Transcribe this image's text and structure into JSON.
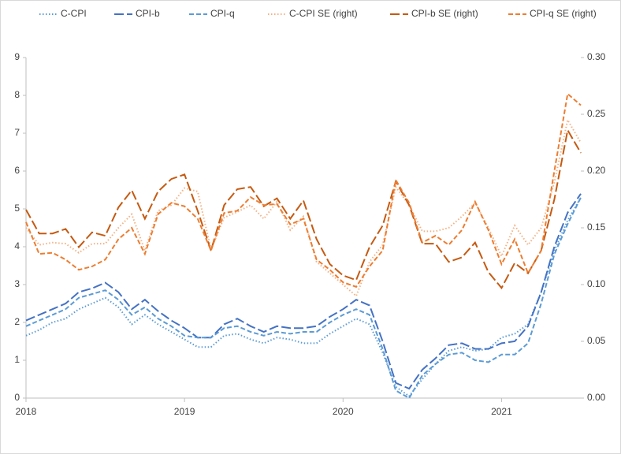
{
  "chart_data": {
    "type": "line",
    "x": [
      2018,
      2018.083,
      2018.167,
      2018.25,
      2018.333,
      2018.417,
      2018.5,
      2018.583,
      2018.667,
      2018.75,
      2018.833,
      2018.917,
      2019,
      2019.083,
      2019.167,
      2019.25,
      2019.333,
      2019.417,
      2019.5,
      2019.583,
      2019.667,
      2019.75,
      2019.833,
      2019.917,
      2020,
      2020.083,
      2020.167,
      2020.25,
      2020.333,
      2020.417,
      2020.5,
      2020.583,
      2020.667,
      2020.75,
      2020.833,
      2020.917,
      2021,
      2021.083,
      2021.167,
      2021.25,
      2021.333,
      2021.417,
      2021.5
    ],
    "xlim": [
      2018,
      2021.5
    ],
    "xticks": [
      2018,
      2019,
      2020,
      2021
    ],
    "ylim": [
      0,
      9
    ],
    "yticks": [
      0,
      1,
      2,
      3,
      4,
      5,
      6,
      7,
      8,
      9
    ],
    "y2lim": [
      0,
      0.3
    ],
    "y2ticks": [
      {
        "value": 0,
        "label": "0.00"
      },
      {
        "value": 0.05,
        "label": "0.05"
      },
      {
        "value": 0.1,
        "label": "0.10"
      },
      {
        "value": 0.15,
        "label": "0.15"
      },
      {
        "value": 0.2,
        "label": "0.20"
      },
      {
        "value": 0.25,
        "label": "0.25"
      },
      {
        "value": 0.3,
        "label": "0.30"
      }
    ],
    "grid": false,
    "legend": "top",
    "series": [
      {
        "name": "C-CPI",
        "color": "#5b9bd5",
        "dash": "dot",
        "values": [
          1.65,
          1.8,
          2.0,
          2.1,
          2.35,
          2.5,
          2.65,
          2.4,
          1.95,
          2.2,
          1.95,
          1.75,
          1.55,
          1.35,
          1.35,
          1.65,
          1.7,
          1.55,
          1.45,
          1.6,
          1.55,
          1.45,
          1.45,
          1.7,
          1.9,
          2.1,
          1.95,
          1.2,
          0.3,
          0.05,
          0.5,
          0.9,
          1.25,
          1.35,
          1.25,
          1.3,
          1.6,
          1.7,
          1.95,
          2.8,
          3.9,
          4.7,
          5.3
        ]
      },
      {
        "name": "CPI-b",
        "color": "#4472c4",
        "dash": "longdash",
        "values": [
          2.05,
          2.2,
          2.35,
          2.5,
          2.8,
          2.9,
          3.05,
          2.8,
          2.35,
          2.6,
          2.3,
          2.05,
          1.85,
          1.6,
          1.6,
          1.95,
          2.1,
          1.9,
          1.75,
          1.9,
          1.85,
          1.85,
          1.9,
          2.15,
          2.35,
          2.6,
          2.45,
          1.5,
          0.4,
          0.25,
          0.75,
          1.05,
          1.4,
          1.45,
          1.3,
          1.3,
          1.45,
          1.5,
          1.9,
          2.8,
          4.0,
          4.9,
          5.4
        ]
      },
      {
        "name": "CPI-q",
        "color": "#5b9bd5",
        "dash": "dash",
        "values": [
          1.9,
          2.05,
          2.2,
          2.35,
          2.65,
          2.75,
          2.85,
          2.6,
          2.2,
          2.4,
          2.1,
          1.9,
          1.65,
          1.6,
          1.6,
          1.85,
          1.9,
          1.75,
          1.65,
          1.75,
          1.7,
          1.75,
          1.75,
          2.0,
          2.2,
          2.35,
          2.2,
          1.3,
          0.2,
          0.0,
          0.6,
          0.9,
          1.15,
          1.2,
          1.0,
          0.95,
          1.15,
          1.15,
          1.45,
          2.5,
          3.8,
          4.6,
          5.3
        ]
      },
      {
        "name": "C-CPI SE (right)",
        "color": "#f4b183",
        "dash": "dot",
        "axis": "y2",
        "values": [
          0.15,
          0.135,
          0.137,
          0.136,
          0.128,
          0.136,
          0.136,
          0.15,
          0.162,
          0.13,
          0.165,
          0.17,
          0.185,
          0.182,
          0.131,
          0.159,
          0.164,
          0.17,
          0.158,
          0.173,
          0.148,
          0.16,
          0.12,
          0.11,
          0.1,
          0.09,
          0.12,
          0.135,
          0.186,
          0.17,
          0.147,
          0.147,
          0.15,
          0.16,
          0.172,
          0.15,
          0.125,
          0.152,
          0.135,
          0.15,
          0.19,
          0.245,
          0.225
        ]
      },
      {
        "name": "CPI-b SE (right)",
        "color": "#c55a11",
        "dash": "longdash",
        "axis": "y2",
        "values": [
          0.166,
          0.145,
          0.145,
          0.149,
          0.133,
          0.146,
          0.143,
          0.168,
          0.183,
          0.158,
          0.182,
          0.193,
          0.197,
          0.165,
          0.13,
          0.17,
          0.184,
          0.186,
          0.169,
          0.176,
          0.158,
          0.174,
          0.14,
          0.118,
          0.108,
          0.104,
          0.133,
          0.152,
          0.191,
          0.17,
          0.136,
          0.136,
          0.12,
          0.124,
          0.137,
          0.111,
          0.097,
          0.119,
          0.11,
          0.13,
          0.175,
          0.236,
          0.216
        ]
      },
      {
        "name": "CPI-q SE (right)",
        "color": "#ed7d31",
        "dash": "dash",
        "axis": "y2",
        "values": [
          0.155,
          0.127,
          0.128,
          0.122,
          0.113,
          0.116,
          0.122,
          0.14,
          0.15,
          0.127,
          0.162,
          0.172,
          0.169,
          0.158,
          0.13,
          0.163,
          0.165,
          0.177,
          0.17,
          0.171,
          0.153,
          0.158,
          0.122,
          0.113,
          0.102,
          0.098,
          0.116,
          0.13,
          0.192,
          0.172,
          0.137,
          0.143,
          0.135,
          0.148,
          0.173,
          0.148,
          0.118,
          0.14,
          0.11,
          0.13,
          0.2,
          0.268,
          0.258
        ]
      }
    ]
  }
}
